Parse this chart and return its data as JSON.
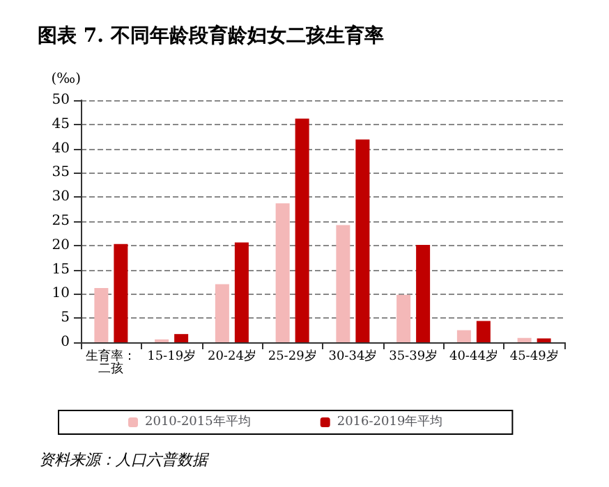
{
  "chart_data": {
    "type": "bar",
    "title": "图表 7. 不同年龄段育龄妇女二孩生育率",
    "ylabel": "(‰)",
    "categories": [
      "生育率：二孩",
      "15-19岁",
      "20-24岁",
      "25-29岁",
      "30-34岁",
      "35-39岁",
      "40-44岁",
      "45-49岁"
    ],
    "series": [
      {
        "name": "2010-2015年平均",
        "color": "#f4b8b8",
        "values": [
          11.2,
          0.6,
          12,
          28.7,
          24.2,
          9.8,
          2.5,
          0.9
        ]
      },
      {
        "name": "2016-2019年平均",
        "color": "#c00000",
        "values": [
          20.3,
          1.7,
          20.6,
          46.2,
          41.9,
          20.1,
          4.4,
          0.8
        ]
      }
    ],
    "ylim": [
      0,
      50
    ],
    "yticks": [
      0,
      5,
      10,
      15,
      20,
      25,
      30,
      35,
      40,
      45,
      50
    ],
    "grid": "y",
    "legend": "bottom",
    "annotations": [
      "资料来源：人口六普数据"
    ]
  }
}
